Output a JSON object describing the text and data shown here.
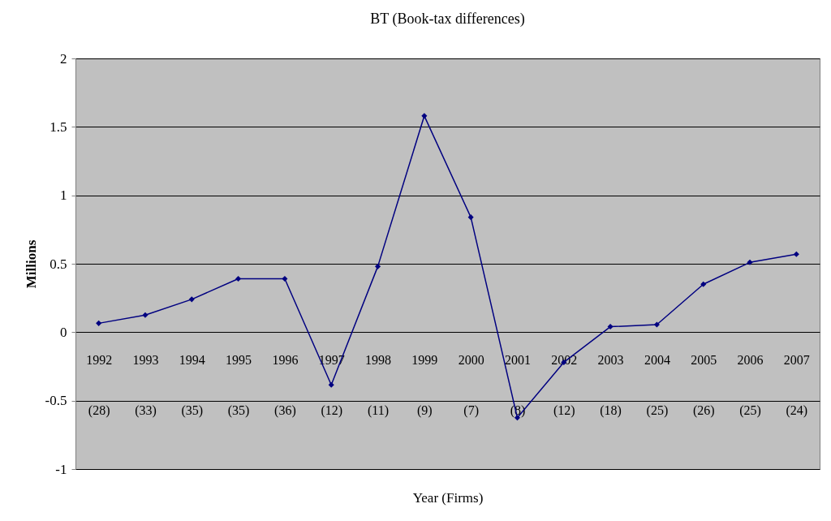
{
  "chart_data": {
    "type": "line",
    "title": "BT (Book-tax differences)",
    "xlabel": "Year (Firms)",
    "ylabel": "Millions",
    "categories": [
      "1992\n(28)",
      "1993\n(33)",
      "1994\n(35)",
      "1995\n(35)",
      "1996\n(36)",
      "1997\n(12)",
      "1998\n(11)",
      "1999\n(9)",
      "2000\n(7)",
      "2001\n(8)",
      "2002\n(12)",
      "2003\n(18)",
      "2004\n(25)",
      "2005\n(26)",
      "2006\n(25)",
      "2007\n(24)"
    ],
    "series": [
      {
        "color": "#000080",
        "values": [
          0.065,
          0.125,
          0.24,
          0.39,
          0.39,
          -0.385,
          0.48,
          1.58,
          0.84,
          -0.625,
          -0.22,
          0.04,
          0.055,
          0.35,
          0.51,
          0.57
        ]
      }
    ],
    "ylim": [
      -1,
      2
    ],
    "yticks": [
      -1,
      -0.5,
      0,
      0.5,
      1,
      1.5,
      2
    ],
    "grid": "y",
    "marker": "diamond",
    "line_style": "solid"
  }
}
